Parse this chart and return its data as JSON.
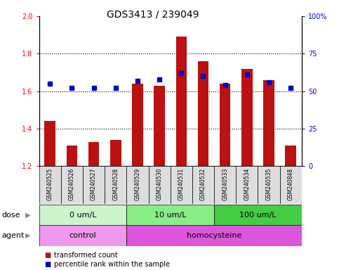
{
  "title": "GDS3413 / 239049",
  "samples": [
    "GSM240525",
    "GSM240526",
    "GSM240527",
    "GSM240528",
    "GSM240529",
    "GSM240530",
    "GSM240531",
    "GSM240532",
    "GSM240533",
    "GSM240534",
    "GSM240535",
    "GSM240848"
  ],
  "red_values": [
    1.44,
    1.31,
    1.33,
    1.34,
    1.64,
    1.63,
    1.89,
    1.76,
    1.64,
    1.72,
    1.66,
    1.31
  ],
  "blue_pct": [
    55,
    52,
    52,
    52,
    57,
    58,
    62,
    60,
    54,
    61,
    56,
    52
  ],
  "ylim_left": [
    1.2,
    2.0
  ],
  "ylim_right": [
    0,
    100
  ],
  "yticks_left": [
    1.2,
    1.4,
    1.6,
    1.8,
    2.0
  ],
  "yticks_right": [
    0,
    25,
    50,
    75,
    100
  ],
  "ytick_labels_right": [
    "0",
    "25",
    "50",
    "75",
    "100%"
  ],
  "dose_groups": [
    {
      "label": "0 um/L",
      "start": 0,
      "end": 4,
      "color": "#ccf5cc"
    },
    {
      "label": "10 um/L",
      "start": 4,
      "end": 8,
      "color": "#88ee88"
    },
    {
      "label": "100 um/L",
      "start": 8,
      "end": 12,
      "color": "#44cc44"
    }
  ],
  "agent_groups": [
    {
      "label": "control",
      "start": 0,
      "end": 4,
      "color": "#ee99ee"
    },
    {
      "label": "homocysteine",
      "start": 4,
      "end": 12,
      "color": "#dd55dd"
    }
  ],
  "bar_color": "#bb1111",
  "dot_color": "#0000cc",
  "plot_bg_color": "#ffffff",
  "xtick_bg_color": "#dddddd",
  "grid_color": "black",
  "label_dose": "dose",
  "label_agent": "agent",
  "legend_red": "transformed count",
  "legend_blue": "percentile rank within the sample",
  "title_fontsize": 10,
  "tick_fontsize": 7,
  "label_fontsize": 8,
  "legend_fontsize": 7
}
